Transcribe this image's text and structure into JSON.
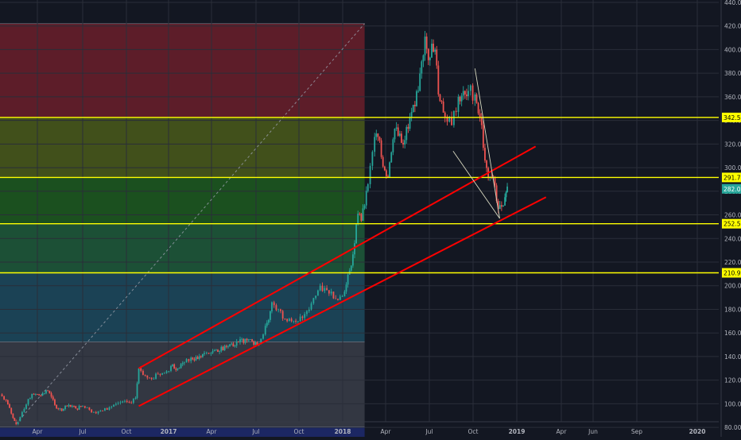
{
  "chart_data": {
    "type": "candlestick",
    "title": "",
    "xlabel": "",
    "ylabel": "",
    "ylim": [
      72,
      442
    ],
    "grid": true,
    "background": "#131722",
    "colors": {
      "up": "#26a69a",
      "down": "#ef5350",
      "level_line": "#ffff00",
      "channel": "#ff0000",
      "price_tag_bg": "#26a69a",
      "level_tag_bg": "#ffff00"
    },
    "y_ticks": [
      "80.00",
      "100.00",
      "120.00",
      "140.00",
      "160.00",
      "180.00",
      "200.00",
      "220.00",
      "240.00",
      "260.00",
      "280.00",
      "300.00",
      "320.00",
      "340.00",
      "360.00",
      "380.00",
      "400.00",
      "420.00",
      "440.00"
    ],
    "x_ticks": [
      {
        "label": "Apr",
        "date": "2016-04-01"
      },
      {
        "label": "Jul",
        "date": "2016-07-01"
      },
      {
        "label": "Oct",
        "date": "2016-10-01"
      },
      {
        "label": "2017",
        "date": "2017-01-01"
      },
      {
        "label": "Apr",
        "date": "2017-04-01"
      },
      {
        "label": "Jul",
        "date": "2017-07-01"
      },
      {
        "label": "Oct",
        "date": "2017-10-01"
      },
      {
        "label": "2018",
        "date": "2018-01-01"
      },
      {
        "label": "Apr",
        "date": "2018-04-01"
      },
      {
        "label": "Jul",
        "date": "2018-07-01"
      },
      {
        "label": "Oct",
        "date": "2018-10-01"
      },
      {
        "label": "2019",
        "date": "2019-01-01"
      },
      {
        "label": "Apr",
        "date": "2019-04-01"
      },
      {
        "label": "Jun",
        "date": "2019-06-01"
      },
      {
        "label": "Sep",
        "date": "2019-09-01"
      },
      {
        "label": "2020",
        "date": "2020-01-01"
      }
    ],
    "x_range": [
      "2016-01-06",
      "2020-03-01"
    ],
    "series": [
      {
        "values": [
          {
            "date": "2016-01-06",
            "close": 108
          },
          {
            "date": "2016-01-20",
            "close": 103
          },
          {
            "date": "2016-02-05",
            "close": 88
          },
          {
            "date": "2016-02-12",
            "close": 83
          },
          {
            "date": "2016-02-26",
            "close": 93
          },
          {
            "date": "2016-03-11",
            "close": 104
          },
          {
            "date": "2016-03-24",
            "close": 108
          },
          {
            "date": "2016-04-08",
            "close": 107
          },
          {
            "date": "2016-04-22",
            "close": 111
          },
          {
            "date": "2016-05-06",
            "close": 99
          },
          {
            "date": "2016-05-20",
            "close": 94
          },
          {
            "date": "2016-06-03",
            "close": 99
          },
          {
            "date": "2016-06-17",
            "close": 96
          },
          {
            "date": "2016-07-01",
            "close": 98
          },
          {
            "date": "2016-07-15",
            "close": 95
          },
          {
            "date": "2016-07-29",
            "close": 92
          },
          {
            "date": "2016-08-12",
            "close": 94
          },
          {
            "date": "2016-08-26",
            "close": 97
          },
          {
            "date": "2016-09-09",
            "close": 100
          },
          {
            "date": "2016-09-23",
            "close": 102
          },
          {
            "date": "2016-10-07",
            "close": 101
          },
          {
            "date": "2016-10-21",
            "close": 105
          },
          {
            "date": "2016-10-28",
            "close": 130
          },
          {
            "date": "2016-11-11",
            "close": 124
          },
          {
            "date": "2016-11-25",
            "close": 121
          },
          {
            "date": "2016-12-09",
            "close": 125
          },
          {
            "date": "2016-12-23",
            "close": 126
          },
          {
            "date": "2017-01-06",
            "close": 132
          },
          {
            "date": "2017-01-20",
            "close": 130
          },
          {
            "date": "2017-02-03",
            "close": 135
          },
          {
            "date": "2017-02-17",
            "close": 139
          },
          {
            "date": "2017-03-03",
            "close": 138
          },
          {
            "date": "2017-03-17",
            "close": 143
          },
          {
            "date": "2017-03-31",
            "close": 143
          },
          {
            "date": "2017-04-14",
            "close": 144
          },
          {
            "date": "2017-04-28",
            "close": 149
          },
          {
            "date": "2017-05-12",
            "close": 151
          },
          {
            "date": "2017-05-26",
            "close": 152
          },
          {
            "date": "2017-06-09",
            "close": 155
          },
          {
            "date": "2017-06-23",
            "close": 153
          },
          {
            "date": "2017-07-07",
            "close": 151
          },
          {
            "date": "2017-07-21",
            "close": 166
          },
          {
            "date": "2017-07-28",
            "close": 171
          },
          {
            "date": "2017-08-04",
            "close": 186
          },
          {
            "date": "2017-08-18",
            "close": 180
          },
          {
            "date": "2017-09-01",
            "close": 172
          },
          {
            "date": "2017-09-15",
            "close": 170
          },
          {
            "date": "2017-09-29",
            "close": 170
          },
          {
            "date": "2017-10-13",
            "close": 176
          },
          {
            "date": "2017-10-27",
            "close": 185
          },
          {
            "date": "2017-11-10",
            "close": 196
          },
          {
            "date": "2017-11-24",
            "close": 198
          },
          {
            "date": "2017-12-08",
            "close": 195
          },
          {
            "date": "2017-12-22",
            "close": 188
          },
          {
            "date": "2018-01-05",
            "close": 195
          },
          {
            "date": "2018-01-19",
            "close": 217
          },
          {
            "date": "2018-01-26",
            "close": 236
          },
          {
            "date": "2018-02-02",
            "close": 261
          },
          {
            "date": "2018-02-09",
            "close": 255
          },
          {
            "date": "2018-02-16",
            "close": 268
          },
          {
            "date": "2018-02-23",
            "close": 286
          },
          {
            "date": "2018-03-09",
            "close": 326
          },
          {
            "date": "2018-03-16",
            "close": 326
          },
          {
            "date": "2018-03-23",
            "close": 309
          },
          {
            "date": "2018-04-06",
            "close": 292
          },
          {
            "date": "2018-04-13",
            "close": 313
          },
          {
            "date": "2018-04-20",
            "close": 333
          },
          {
            "date": "2018-05-04",
            "close": 321
          },
          {
            "date": "2018-05-18",
            "close": 333
          },
          {
            "date": "2018-06-01",
            "close": 352
          },
          {
            "date": "2018-06-08",
            "close": 365
          },
          {
            "date": "2018-06-15",
            "close": 390
          },
          {
            "date": "2018-06-22",
            "close": 411
          },
          {
            "date": "2018-06-29",
            "close": 391
          },
          {
            "date": "2018-07-06",
            "close": 405
          },
          {
            "date": "2018-07-13",
            "close": 400
          },
          {
            "date": "2018-07-20",
            "close": 362
          },
          {
            "date": "2018-07-27",
            "close": 356
          },
          {
            "date": "2018-08-03",
            "close": 343
          },
          {
            "date": "2018-08-17",
            "close": 336
          },
          {
            "date": "2018-08-31",
            "close": 360
          },
          {
            "date": "2018-09-07",
            "close": 361
          },
          {
            "date": "2018-09-14",
            "close": 362
          },
          {
            "date": "2018-09-21",
            "close": 365
          },
          {
            "date": "2018-10-05",
            "close": 362
          },
          {
            "date": "2018-10-12",
            "close": 346
          },
          {
            "date": "2018-10-19",
            "close": 336
          },
          {
            "date": "2018-10-26",
            "close": 306
          },
          {
            "date": "2018-11-02",
            "close": 292
          },
          {
            "date": "2018-11-09",
            "close": 292
          },
          {
            "date": "2018-11-16",
            "close": 285
          },
          {
            "date": "2018-11-23",
            "close": 265
          },
          {
            "date": "2018-11-30",
            "close": 267
          },
          {
            "date": "2018-12-07",
            "close": 275
          },
          {
            "date": "2018-12-12",
            "close": 284
          }
        ]
      }
    ],
    "horizontal_levels": [
      {
        "value": 342.53,
        "label": "342.53"
      },
      {
        "value": 291.71,
        "label": "291.71"
      },
      {
        "value": 252.5,
        "label": "252.50"
      },
      {
        "value": 210.91,
        "label": "210.91"
      }
    ],
    "current_price": {
      "value": 282.05,
      "label": "282.05"
    },
    "fib_bands": [
      {
        "from": 422,
        "to": 342.5,
        "color": "#6b1f2a"
      },
      {
        "from": 342.5,
        "to": 291.7,
        "color": "#4a5a1a"
      },
      {
        "from": 291.7,
        "to": 252.5,
        "color": "#1d5a1f"
      },
      {
        "from": 252.5,
        "to": 210.9,
        "color": "#1f5a3a"
      },
      {
        "from": 210.9,
        "to": 152.5,
        "color": "#1d4a5e"
      },
      {
        "from": 152.5,
        "to": 80.5,
        "color": "#3a3d48"
      },
      {
        "from": 80.5,
        "to": 72,
        "color": "#1e2a6e"
      }
    ],
    "fib_box": {
      "start": "2016-01-06",
      "end": "2018-02-16"
    },
    "diagonal": {
      "start": {
        "date": "2016-02-12",
        "value": 83
      },
      "end": {
        "date": "2018-02-16",
        "value": 422
      }
    },
    "channel_lines": [
      {
        "start": {
          "date": "2016-10-28",
          "value": 130
        },
        "end": {
          "date": "2019-02-08",
          "value": 318
        }
      },
      {
        "start": {
          "date": "2016-10-28",
          "value": 98
        },
        "end": {
          "date": "2019-03-01",
          "value": 275
        }
      }
    ],
    "triangle_lines": [
      {
        "start": {
          "date": "2018-08-20",
          "value": 314
        },
        "end": {
          "date": "2018-11-26",
          "value": 257
        }
      },
      {
        "start": {
          "date": "2018-10-05",
          "value": 384
        },
        "end": {
          "date": "2018-11-26",
          "value": 257
        }
      }
    ]
  }
}
